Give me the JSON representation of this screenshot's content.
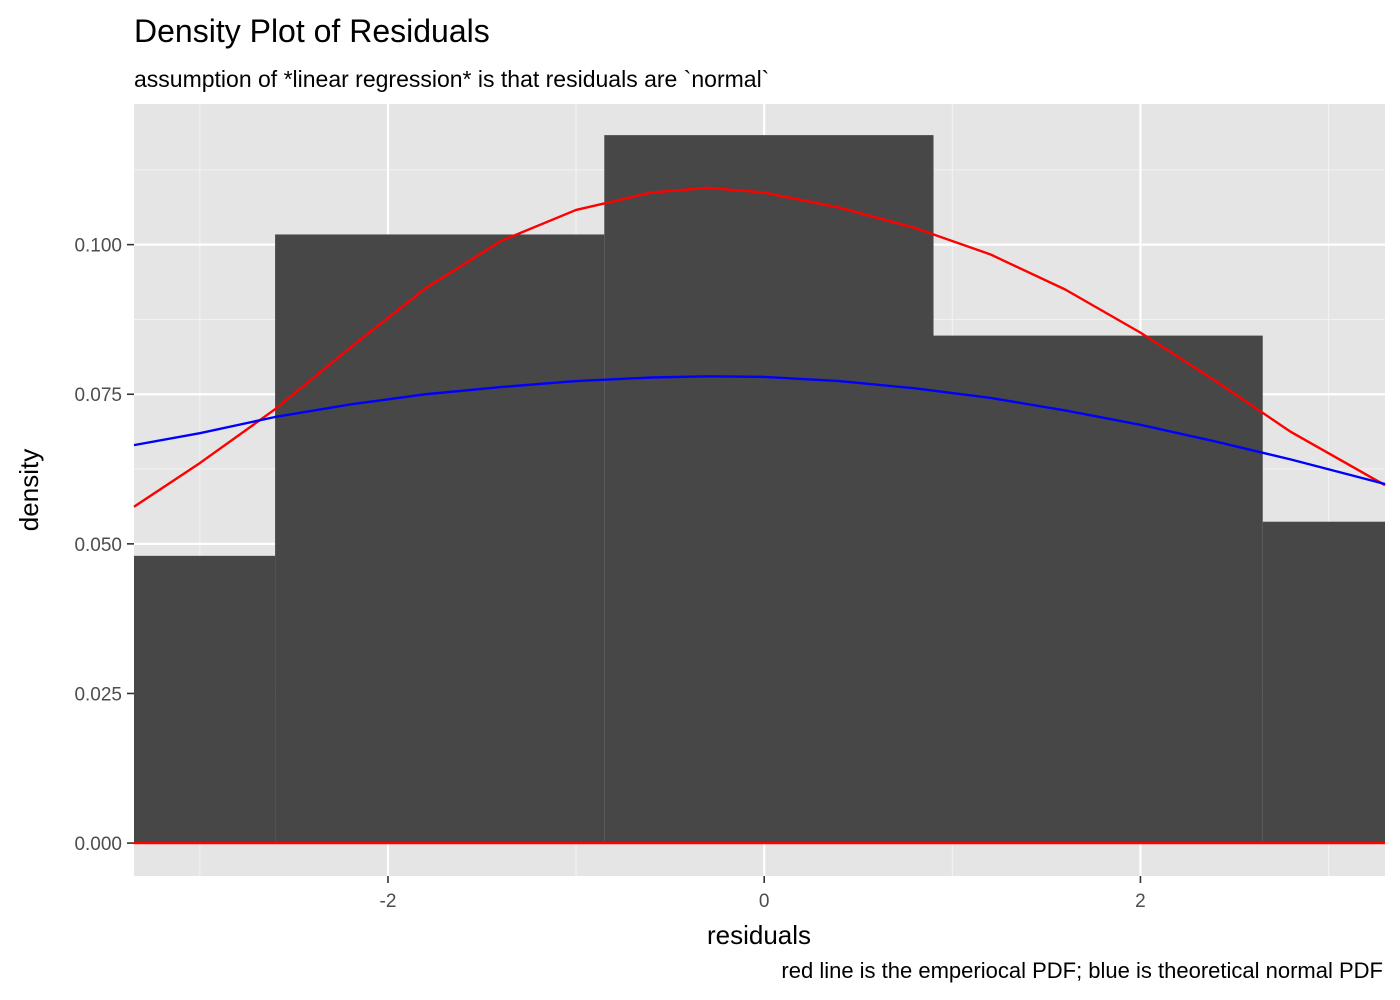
{
  "chart_data": {
    "type": "bar",
    "title": "Density Plot of Residuals",
    "subtitle": "assumption of *linear regression* is that residuals are `normal`",
    "xlabel": "residuals",
    "ylabel": "density",
    "caption": "red line is the emperiocal PDF; blue is theoretical normal PDF",
    "xlim": [
      -3.35,
      3.3
    ],
    "ylim": [
      -0.0055,
      0.1235
    ],
    "x_ticks": [
      -2,
      0,
      2
    ],
    "x_tick_labels": [
      "-2",
      "0",
      "2"
    ],
    "y_ticks": [
      0,
      0.025,
      0.05,
      0.075,
      0.1
    ],
    "y_tick_labels": [
      "0.000",
      "0.025",
      "0.050",
      "0.075",
      "0.100"
    ],
    "grid": true,
    "histogram": {
      "bin_edges": [
        -3.35,
        -2.6,
        -0.85,
        0.9,
        2.65,
        3.3
      ],
      "density": [
        0.048,
        0.1017,
        0.1183,
        0.0848,
        0.0537
      ],
      "color": "#474747"
    },
    "series": [
      {
        "type": "line",
        "color": "#ff0000",
        "x": [
          -3.35,
          -3.0,
          -2.6,
          -2.2,
          -1.8,
          -1.4,
          -1.0,
          -0.6,
          -0.3,
          0.0,
          0.4,
          0.8,
          1.2,
          1.6,
          2.0,
          2.4,
          2.8,
          3.3
        ],
        "values": [
          0.0562,
          0.0635,
          0.0725,
          0.0828,
          0.0927,
          0.1006,
          0.1058,
          0.1087,
          0.1095,
          0.1087,
          0.1062,
          0.1028,
          0.0984,
          0.0925,
          0.0853,
          0.0772,
          0.0687,
          0.0598
        ]
      },
      {
        "type": "line",
        "color": "#0000ff",
        "x": [
          -3.35,
          -3.0,
          -2.6,
          -2.2,
          -1.8,
          -1.4,
          -1.0,
          -0.6,
          -0.3,
          0.0,
          0.4,
          0.8,
          1.2,
          1.6,
          2.0,
          2.4,
          2.8,
          3.3
        ],
        "values": [
          0.0665,
          0.0685,
          0.0712,
          0.0733,
          0.075,
          0.0762,
          0.0772,
          0.0778,
          0.078,
          0.0779,
          0.0772,
          0.076,
          0.0744,
          0.0723,
          0.0699,
          0.0671,
          0.0641,
          0.06
        ]
      },
      {
        "type": "line",
        "color": "#ff0000",
        "x": [
          -3.35,
          3.3
        ],
        "values": [
          0,
          0
        ]
      }
    ]
  }
}
